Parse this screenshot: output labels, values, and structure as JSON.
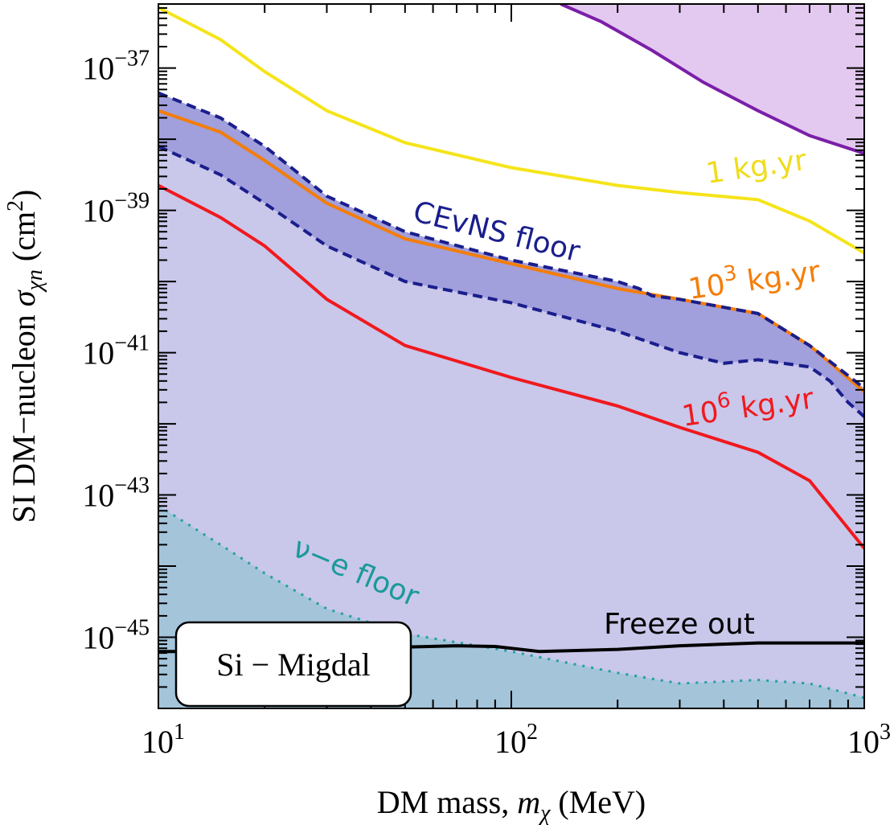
{
  "chart_data": {
    "type": "line",
    "title": "",
    "xlabel_main": "DM mass, ",
    "xlabel_var": "m",
    "xlabel_sub": "χ",
    "xlabel_unit": " (MeV)",
    "ylabel_main": "SI DM−nucleon ",
    "ylabel_var": "σ",
    "ylabel_sub": "χn",
    "ylabel_unit": " (cm",
    "ylabel_unit_sup": "2",
    "ylabel_unit_close": ")",
    "x_scale": "log",
    "y_scale": "log",
    "xlim": [
      10,
      1000
    ],
    "ylim_exponent": [
      -46,
      -36.1
    ],
    "x_ticks": [
      {
        "value": 10,
        "base": "10",
        "exp": "1"
      },
      {
        "value": 100,
        "base": "10",
        "exp": "2"
      },
      {
        "value": 1000,
        "base": "10",
        "exp": "3"
      }
    ],
    "y_ticks": [
      {
        "exp_value": -37,
        "base": "10",
        "exp": "−37"
      },
      {
        "exp_value": -39,
        "base": "10",
        "exp": "−39"
      },
      {
        "exp_value": -41,
        "base": "10",
        "exp": "−41"
      },
      {
        "exp_value": -43,
        "base": "10",
        "exp": "−43"
      },
      {
        "exp_value": -45,
        "base": "10",
        "exp": "−45"
      }
    ],
    "legend_box": "Si − Migdal",
    "colors": {
      "floor_fill": "#c9c7ea",
      "band_fill": "#a19fdc",
      "band_edge": "#1a1e8c",
      "nu_e_fill": "#a4c4da",
      "nu_e_line": "#22a0a0",
      "excluded_fill": "#e3c9ef",
      "excluded_line": "#7b1fa8",
      "exposure_1": "#f5e41a",
      "exposure_1e3": "#f47d0a",
      "exposure_1e6": "#f0191e",
      "freeze_out": "#000000"
    },
    "series": [
      {
        "name": "1 kg.yr",
        "label_base": "1 kg.yr",
        "color_key": "exposure_1",
        "x": [
          10,
          15,
          20,
          30,
          50,
          100,
          200,
          300,
          500,
          700,
          1000
        ],
        "y_exp": [
          -36.15,
          -36.6,
          -37.05,
          -37.6,
          -38.05,
          -38.4,
          -38.65,
          -38.75,
          -38.85,
          -39.15,
          -39.6
        ]
      },
      {
        "name": "10^3 kg.yr",
        "label_base": "10",
        "label_sup": "3",
        "label_rest": " kg.yr",
        "color_key": "exposure_1e3",
        "x": [
          10,
          15,
          20,
          30,
          50,
          100,
          200,
          300,
          500,
          700,
          1000
        ],
        "y_exp": [
          -37.6,
          -37.9,
          -38.3,
          -38.9,
          -39.4,
          -39.75,
          -40.1,
          -40.25,
          -40.45,
          -40.9,
          -41.55
        ]
      },
      {
        "name": "10^6 kg.yr",
        "label_base": "10",
        "label_sup": "6",
        "label_rest": " kg.yr",
        "color_key": "exposure_1e6",
        "x": [
          10,
          15,
          20,
          30,
          50,
          100,
          200,
          300,
          500,
          700,
          1000
        ],
        "y_exp": [
          -38.65,
          -39.1,
          -39.5,
          -40.25,
          -40.9,
          -41.35,
          -41.75,
          -42.05,
          -42.4,
          -42.8,
          -43.75
        ]
      },
      {
        "name": "CEvNS floor upper",
        "label_base": "CEvNS floor",
        "color_key": "band_edge",
        "x": [
          10,
          15,
          20,
          30,
          50,
          100,
          200,
          230,
          250,
          300,
          500,
          700,
          1000
        ],
        "y_exp": [
          -37.35,
          -37.7,
          -38.1,
          -38.8,
          -39.3,
          -39.7,
          -40.0,
          -40.1,
          -40.2,
          -40.25,
          -40.45,
          -40.9,
          -41.5
        ]
      },
      {
        "name": "CEvNS floor lower",
        "color_key": "band_edge",
        "x": [
          10,
          15,
          20,
          30,
          50,
          100,
          200,
          300,
          400,
          500,
          700,
          800,
          900,
          1000
        ],
        "y_exp": [
          -38.1,
          -38.5,
          -38.9,
          -39.5,
          -40.0,
          -40.3,
          -40.7,
          -41.0,
          -41.15,
          -41.1,
          -41.2,
          -41.4,
          -41.7,
          -41.9
        ]
      },
      {
        "name": "ν−e floor",
        "label_base": "ν−e floor",
        "color_key": "nu_e_line",
        "x": [
          10,
          15,
          20,
          30,
          50,
          100,
          200,
          300,
          500,
          700,
          1000
        ],
        "y_exp": [
          -43.15,
          -43.7,
          -44.1,
          -44.6,
          -44.95,
          -45.2,
          -45.5,
          -45.65,
          -45.6,
          -45.65,
          -45.85
        ]
      },
      {
        "name": "Freeze out",
        "label_base": "Freeze out",
        "color_key": "freeze_out",
        "x": [
          10,
          20,
          40,
          70,
          90,
          120,
          200,
          300,
          500,
          1000
        ],
        "y_exp": [
          -45.2,
          -45.2,
          -45.15,
          -45.12,
          -45.13,
          -45.2,
          -45.17,
          -45.12,
          -45.08,
          -45.08
        ]
      },
      {
        "name": "Excluded region edge",
        "color_key": "excluded_line",
        "x": [
          138,
          180,
          250,
          350,
          500,
          700,
          1000
        ],
        "y_exp": [
          -36.1,
          -36.35,
          -36.75,
          -37.2,
          -37.6,
          -37.95,
          -38.2
        ]
      }
    ]
  }
}
